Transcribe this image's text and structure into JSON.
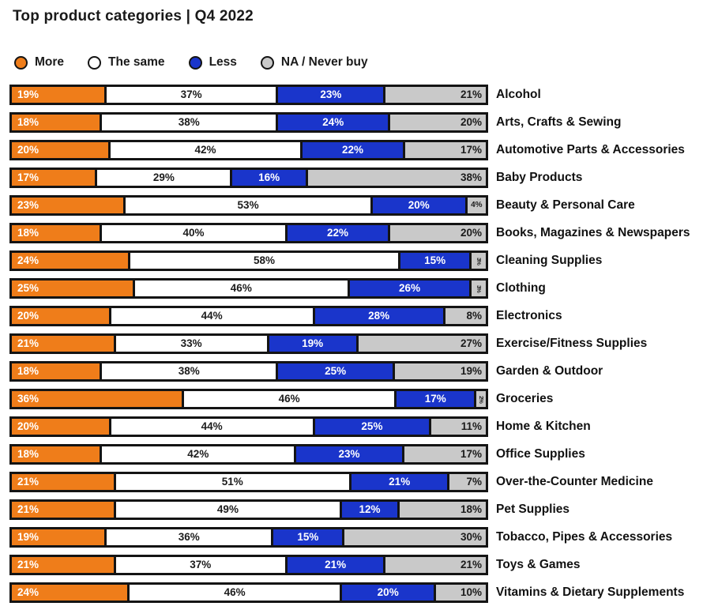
{
  "title": "Top product categories | Q4 2022",
  "legend": [
    {
      "label": "More",
      "color": "#ef7d1a"
    },
    {
      "label": "The same",
      "color": "#ffffff"
    },
    {
      "label": "Less",
      "color": "#1a35cb"
    },
    {
      "label": "NA / Never buy",
      "color": "#c9c9c9"
    }
  ],
  "colors": {
    "more": "#ef7d1a",
    "same": "#ffffff",
    "less": "#1a35cb",
    "na": "#c9c9c9",
    "border": "#141414",
    "text_dark": "#1c1c1c",
    "text_light": "#ffffff"
  },
  "chart_data": {
    "type": "bar",
    "orientation": "horizontal",
    "stacked": true,
    "unit": "%",
    "title": "Top product categories | Q4 2022",
    "legend_position": "top",
    "axes_visible": false,
    "categories": [
      "Alcohol",
      "Arts, Crafts & Sewing",
      "Automotive Parts & Accessories",
      "Baby Products",
      "Beauty & Personal Care",
      "Books, Magazines & Newspapers",
      "Cleaning Supplies",
      "Clothing",
      "Electronics",
      "Exercise/Fitness Supplies",
      "Garden & Outdoor",
      "Groceries",
      "Home & Kitchen",
      "Office Supplies",
      "Over-the-Counter Medicine",
      "Pet Supplies",
      "Tobacco, Pipes & Accessories",
      "Toys & Games",
      "Vitamins & Dietary Supplements"
    ],
    "series": [
      {
        "name": "More",
        "color": "#ef7d1a",
        "values": [
          19,
          18,
          20,
          17,
          23,
          18,
          24,
          25,
          20,
          21,
          18,
          36,
          20,
          18,
          21,
          21,
          19,
          21,
          24
        ]
      },
      {
        "name": "The same",
        "color": "#ffffff",
        "values": [
          37,
          38,
          42,
          29,
          53,
          40,
          58,
          46,
          44,
          33,
          38,
          46,
          44,
          42,
          51,
          49,
          36,
          37,
          46
        ]
      },
      {
        "name": "Less",
        "color": "#1a35cb",
        "values": [
          23,
          24,
          22,
          16,
          20,
          22,
          15,
          26,
          28,
          19,
          25,
          17,
          25,
          23,
          21,
          12,
          15,
          21,
          20
        ]
      },
      {
        "name": "NA / Never buy",
        "color": "#c9c9c9",
        "values": [
          21,
          20,
          17,
          38,
          4,
          20,
          3,
          3,
          8,
          27,
          19,
          2,
          11,
          17,
          7,
          18,
          30,
          21,
          10
        ]
      }
    ]
  }
}
